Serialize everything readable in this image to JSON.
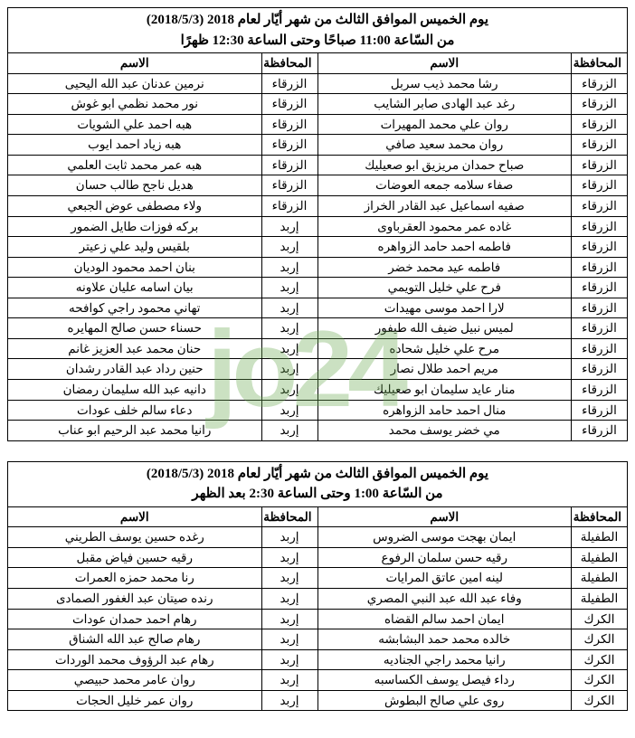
{
  "watermark": "jo24",
  "sections": [
    {
      "title_line1": "يوم الخميس الموافق الثالث من شهر أيّار لعام 2018 (2018/5/3)",
      "title_line2": "من السّاعة 11:00 صباحًا وحتى الساعة 12:30 ظهرًا",
      "headers": {
        "gov": "المحافظة",
        "name": "الاسم"
      },
      "rows": [
        {
          "g1": "الزرقاء",
          "n1": "رشا محمد ذيب سربل",
          "g2": "الزرقاء",
          "n2": "نرمين عدنان عبد الله اليحيى"
        },
        {
          "g1": "الزرقاء",
          "n1": "رغد عبد الهادى صابر الشايب",
          "g2": "الزرقاء",
          "n2": "نور محمد نظمي ابو غوش"
        },
        {
          "g1": "الزرقاء",
          "n1": "روان علي محمد المهيرات",
          "g2": "الزرقاء",
          "n2": "هبه احمد علي الشويات"
        },
        {
          "g1": "الزرقاء",
          "n1": "روان محمد سعيد صافي",
          "g2": "الزرقاء",
          "n2": "هبه زياد احمد ايوب"
        },
        {
          "g1": "الزرقاء",
          "n1": "صباح حمدان مريزيق ابو صعيليك",
          "g2": "الزرقاء",
          "n2": "هبه عمر محمد ثابت العلمي"
        },
        {
          "g1": "الزرقاء",
          "n1": "صفاء سلامه جمعه العوضات",
          "g2": "الزرقاء",
          "n2": "هديل ناجح طالب حسان"
        },
        {
          "g1": "الزرقاء",
          "n1": "صفيه اسماعيل عبد القادر الخراز",
          "g2": "الزرقاء",
          "n2": "ولاء مصطفى عوض الجبعي"
        },
        {
          "g1": "الزرقاء",
          "n1": "غاده عمر محمود العقرباوى",
          "g2": "إربد",
          "n2": "بركه فوزات طايل الضمور"
        },
        {
          "g1": "الزرقاء",
          "n1": "فاطمه احمد حامد الزواهره",
          "g2": "إربد",
          "n2": "بلقيس وليد علي زعيتر"
        },
        {
          "g1": "الزرقاء",
          "n1": "فاطمه عيد محمد خضر",
          "g2": "إربد",
          "n2": "بنان احمد محمود الوديان"
        },
        {
          "g1": "الزرقاء",
          "n1": "فرح علي خليل التويمي",
          "g2": "إربد",
          "n2": "بيان اسامه عليان علاونه"
        },
        {
          "g1": "الزرقاء",
          "n1": "لارا احمد موسى مهيدات",
          "g2": "إربد",
          "n2": "تهاني محمود راجي كوافحه"
        },
        {
          "g1": "الزرقاء",
          "n1": "لميس نبيل ضيف الله طيفور",
          "g2": "إربد",
          "n2": "حسناء حسن صالح المهايره"
        },
        {
          "g1": "الزرقاء",
          "n1": "مرح علي خليل شحاده",
          "g2": "إربد",
          "n2": "حنان محمد عبد العزيز غانم"
        },
        {
          "g1": "الزرقاء",
          "n1": "مريم احمد طلال نصار",
          "g2": "إربد",
          "n2": "حنين رداد عبد القادر رشدان"
        },
        {
          "g1": "الزرقاء",
          "n1": "منار عايد سليمان ابو صعيليك",
          "g2": "إربد",
          "n2": "دانيه عبد الله سليمان رمضان"
        },
        {
          "g1": "الزرقاء",
          "n1": "منال احمد حامد الزواهره",
          "g2": "إربد",
          "n2": "دعاء سالم خلف عودات"
        },
        {
          "g1": "الزرقاء",
          "n1": "مي خضر يوسف محمد",
          "g2": "إربد",
          "n2": "رانيا محمد عبد الرحيم ابو عناب"
        }
      ]
    },
    {
      "title_line1": "يوم الخميس الموافق الثالث من شهر أيّار لعام 2018 (2018/5/3)",
      "title_line2": "من السّاعة 1:00 وحتى الساعة 2:30 بعد الظهر",
      "headers": {
        "gov": "المحافظة",
        "name": "الاسم"
      },
      "rows": [
        {
          "g1": "الطفيلة",
          "n1": "ايمان بهجت موسى الضروس",
          "g2": "إربد",
          "n2": "رغده حسين يوسف الطريني"
        },
        {
          "g1": "الطفيلة",
          "n1": "رقيه حسن سلمان الرفوع",
          "g2": "إربد",
          "n2": "رقيه حسين فياض مقبل"
        },
        {
          "g1": "الطفيلة",
          "n1": "لينه امين عاتق المرايات",
          "g2": "إربد",
          "n2": "رنا محمد حمزه العمرات"
        },
        {
          "g1": "الطفيلة",
          "n1": "وفاء عبد الله عبد النبي المصري",
          "g2": "إربد",
          "n2": "رنده صيتان عبد الغفور الصمادى"
        },
        {
          "g1": "الكرك",
          "n1": "ايمان احمد سالم القضاه",
          "g2": "إربد",
          "n2": "رهام احمد حمدان عودات"
        },
        {
          "g1": "الكرك",
          "n1": "خالده محمد حمد البشابشه",
          "g2": "إربد",
          "n2": "رهام صالح عبد الله الشناق"
        },
        {
          "g1": "الكرك",
          "n1": "رانيا محمد راجي الجناديه",
          "g2": "إربد",
          "n2": "رهام عبد الرؤوف محمد الوردات"
        },
        {
          "g1": "الكرك",
          "n1": "رداء فيصل يوسف الكساسبه",
          "g2": "إربد",
          "n2": "روان عامر محمد حبيصي"
        },
        {
          "g1": "الكرك",
          "n1": "روى علي صالح البطوش",
          "g2": "إربد",
          "n2": "روان عمر خليل الحجات"
        }
      ]
    }
  ]
}
